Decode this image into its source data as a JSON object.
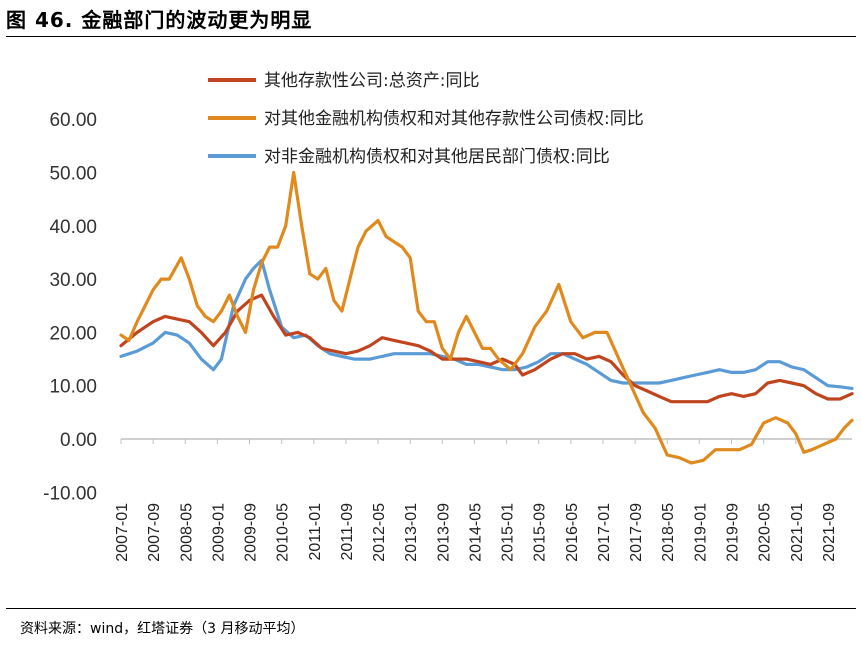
{
  "header": {
    "title": "图 46. 金融部门的波动更为明显"
  },
  "footer": {
    "source": "资料来源：wind，红塔证券（3 月移动平均）"
  },
  "chart_data": {
    "type": "line",
    "title": "",
    "xlabel": "",
    "ylabel": "",
    "ylim": [
      -10,
      60
    ],
    "yticks": [
      -10,
      0,
      10,
      20,
      30,
      40,
      50,
      60
    ],
    "ytick_labels": [
      "-10.00",
      "0.00",
      "10.00",
      "20.00",
      "30.00",
      "40.00",
      "50.00",
      "60.00"
    ],
    "x_start": "2007-01",
    "x_end": "2022-03",
    "x_tick_labels": [
      "2007-01",
      "2007-09",
      "2008-05",
      "2009-01",
      "2009-09",
      "2010-05",
      "2011-01",
      "2011-09",
      "2012-05",
      "2013-01",
      "2013-09",
      "2014-05",
      "2015-01",
      "2015-09",
      "2016-05",
      "2017-01",
      "2017-09",
      "2018-05",
      "2019-01",
      "2019-09",
      "2020-05",
      "2021-01",
      "2021-09"
    ],
    "legend_position": "top-center",
    "colors": {
      "series1": "#C0451F",
      "series2": "#E08A1E",
      "series3": "#5B9BD5",
      "axis": "#bfbfbf"
    },
    "series": [
      {
        "name": "其他存款性公司:总资产:同比",
        "color": "#C0451F",
        "points": [
          [
            "2007-01",
            17.5
          ],
          [
            "2007-05",
            20
          ],
          [
            "2007-09",
            22
          ],
          [
            "2007-12",
            23
          ],
          [
            "2008-03",
            22.5
          ],
          [
            "2008-06",
            22
          ],
          [
            "2008-09",
            20
          ],
          [
            "2008-12",
            17.5
          ],
          [
            "2009-03",
            20
          ],
          [
            "2009-06",
            24
          ],
          [
            "2009-09",
            26
          ],
          [
            "2009-12",
            27
          ],
          [
            "2010-03",
            23
          ],
          [
            "2010-06",
            19.5
          ],
          [
            "2010-09",
            20
          ],
          [
            "2010-12",
            19
          ],
          [
            "2011-03",
            17
          ],
          [
            "2011-06",
            16.5
          ],
          [
            "2011-09",
            16
          ],
          [
            "2011-12",
            16.5
          ],
          [
            "2012-03",
            17.5
          ],
          [
            "2012-06",
            19
          ],
          [
            "2012-09",
            18.5
          ],
          [
            "2012-12",
            18
          ],
          [
            "2013-03",
            17.5
          ],
          [
            "2013-06",
            16.5
          ],
          [
            "2013-09",
            15
          ],
          [
            "2013-12",
            15
          ],
          [
            "2014-03",
            15
          ],
          [
            "2014-06",
            14.5
          ],
          [
            "2014-09",
            14
          ],
          [
            "2014-12",
            15
          ],
          [
            "2015-03",
            14
          ],
          [
            "2015-05",
            12
          ],
          [
            "2015-08",
            13
          ],
          [
            "2015-12",
            15
          ],
          [
            "2016-03",
            16
          ],
          [
            "2016-06",
            16
          ],
          [
            "2016-09",
            15
          ],
          [
            "2016-12",
            15.5
          ],
          [
            "2017-03",
            14.5
          ],
          [
            "2017-06",
            12
          ],
          [
            "2017-09",
            10
          ],
          [
            "2017-12",
            9
          ],
          [
            "2018-03",
            8
          ],
          [
            "2018-06",
            7
          ],
          [
            "2018-09",
            7
          ],
          [
            "2018-12",
            7
          ],
          [
            "2019-03",
            7
          ],
          [
            "2019-06",
            8
          ],
          [
            "2019-09",
            8.5
          ],
          [
            "2019-12",
            8
          ],
          [
            "2020-03",
            8.5
          ],
          [
            "2020-06",
            10.5
          ],
          [
            "2020-09",
            11
          ],
          [
            "2020-12",
            10.5
          ],
          [
            "2021-03",
            10
          ],
          [
            "2021-06",
            8.5
          ],
          [
            "2021-09",
            7.5
          ],
          [
            "2021-12",
            7.5
          ],
          [
            "2022-03",
            8.5
          ]
        ]
      },
      {
        "name": "对其他金融机构债权和对其他存款性公司债权:同比",
        "color": "#E08A1E",
        "points": [
          [
            "2007-01",
            19.5
          ],
          [
            "2007-03",
            18.5
          ],
          [
            "2007-05",
            22
          ],
          [
            "2007-07",
            25
          ],
          [
            "2007-09",
            28
          ],
          [
            "2007-11",
            30
          ],
          [
            "2008-01",
            30
          ],
          [
            "2008-04",
            34
          ],
          [
            "2008-06",
            30
          ],
          [
            "2008-08",
            25
          ],
          [
            "2008-10",
            23
          ],
          [
            "2008-12",
            22
          ],
          [
            "2009-02",
            24
          ],
          [
            "2009-04",
            27
          ],
          [
            "2009-06",
            23
          ],
          [
            "2009-08",
            20
          ],
          [
            "2009-10",
            28
          ],
          [
            "2009-12",
            33
          ],
          [
            "2010-02",
            36
          ],
          [
            "2010-04",
            36
          ],
          [
            "2010-06",
            40
          ],
          [
            "2010-08",
            50
          ],
          [
            "2010-10",
            40
          ],
          [
            "2010-12",
            31
          ],
          [
            "2011-02",
            30
          ],
          [
            "2011-04",
            32
          ],
          [
            "2011-06",
            26
          ],
          [
            "2011-08",
            24
          ],
          [
            "2011-10",
            30
          ],
          [
            "2011-12",
            36
          ],
          [
            "2012-02",
            39
          ],
          [
            "2012-05",
            41
          ],
          [
            "2012-07",
            38
          ],
          [
            "2012-09",
            37
          ],
          [
            "2012-11",
            36
          ],
          [
            "2013-01",
            34
          ],
          [
            "2013-03",
            24
          ],
          [
            "2013-05",
            22
          ],
          [
            "2013-07",
            22
          ],
          [
            "2013-09",
            17
          ],
          [
            "2013-11",
            15
          ],
          [
            "2014-01",
            20
          ],
          [
            "2014-03",
            23
          ],
          [
            "2014-05",
            20
          ],
          [
            "2014-07",
            17
          ],
          [
            "2014-09",
            17
          ],
          [
            "2014-11",
            15
          ],
          [
            "2015-02",
            13
          ],
          [
            "2015-05",
            16
          ],
          [
            "2015-08",
            21
          ],
          [
            "2015-11",
            24
          ],
          [
            "2016-02",
            29
          ],
          [
            "2016-05",
            22
          ],
          [
            "2016-08",
            19
          ],
          [
            "2016-11",
            20
          ],
          [
            "2017-02",
            20
          ],
          [
            "2017-05",
            15
          ],
          [
            "2017-08",
            10
          ],
          [
            "2017-11",
            5
          ],
          [
            "2018-02",
            2
          ],
          [
            "2018-05",
            -3
          ],
          [
            "2018-08",
            -3.5
          ],
          [
            "2018-11",
            -4.5
          ],
          [
            "2019-02",
            -4
          ],
          [
            "2019-05",
            -2
          ],
          [
            "2019-08",
            -2
          ],
          [
            "2019-11",
            -2
          ],
          [
            "2020-02",
            -1
          ],
          [
            "2020-05",
            3
          ],
          [
            "2020-08",
            4
          ],
          [
            "2020-11",
            3
          ],
          [
            "2021-01",
            1
          ],
          [
            "2021-03",
            -2.5
          ],
          [
            "2021-05",
            -2
          ],
          [
            "2021-08",
            -1
          ],
          [
            "2021-11",
            0
          ],
          [
            "2022-01",
            2
          ],
          [
            "2022-03",
            3.5
          ]
        ]
      },
      {
        "name": "对非金融机构债权和对其他居民部门债权:同比",
        "color": "#5B9BD5",
        "points": [
          [
            "2007-01",
            15.5
          ],
          [
            "2007-05",
            16.5
          ],
          [
            "2007-09",
            18
          ],
          [
            "2007-12",
            20
          ],
          [
            "2008-03",
            19.5
          ],
          [
            "2008-06",
            18
          ],
          [
            "2008-09",
            15
          ],
          [
            "2008-12",
            13
          ],
          [
            "2009-02",
            15
          ],
          [
            "2009-05",
            25
          ],
          [
            "2009-08",
            30
          ],
          [
            "2009-10",
            32
          ],
          [
            "2009-12",
            33.5
          ],
          [
            "2010-02",
            28
          ],
          [
            "2010-05",
            21
          ],
          [
            "2010-08",
            19
          ],
          [
            "2010-11",
            19.5
          ],
          [
            "2011-02",
            17.5
          ],
          [
            "2011-05",
            16
          ],
          [
            "2011-08",
            15.5
          ],
          [
            "2011-11",
            15
          ],
          [
            "2012-03",
            15
          ],
          [
            "2012-06",
            15.5
          ],
          [
            "2012-09",
            16
          ],
          [
            "2012-12",
            16
          ],
          [
            "2013-03",
            16
          ],
          [
            "2013-06",
            16
          ],
          [
            "2013-09",
            15.5
          ],
          [
            "2013-12",
            15
          ],
          [
            "2014-03",
            14
          ],
          [
            "2014-06",
            14
          ],
          [
            "2014-09",
            13.5
          ],
          [
            "2014-12",
            13
          ],
          [
            "2015-03",
            13
          ],
          [
            "2015-06",
            13.5
          ],
          [
            "2015-09",
            14.5
          ],
          [
            "2015-12",
            16
          ],
          [
            "2016-03",
            16
          ],
          [
            "2016-06",
            15
          ],
          [
            "2016-09",
            14
          ],
          [
            "2016-12",
            12.5
          ],
          [
            "2017-03",
            11
          ],
          [
            "2017-06",
            10.5
          ],
          [
            "2017-09",
            10.5
          ],
          [
            "2017-12",
            10.5
          ],
          [
            "2018-03",
            10.5
          ],
          [
            "2018-06",
            11
          ],
          [
            "2018-09",
            11.5
          ],
          [
            "2018-12",
            12
          ],
          [
            "2019-03",
            12.5
          ],
          [
            "2019-06",
            13
          ],
          [
            "2019-09",
            12.5
          ],
          [
            "2019-12",
            12.5
          ],
          [
            "2020-03",
            13
          ],
          [
            "2020-06",
            14.5
          ],
          [
            "2020-09",
            14.5
          ],
          [
            "2020-12",
            13.5
          ],
          [
            "2021-03",
            13
          ],
          [
            "2021-06",
            11.5
          ],
          [
            "2021-09",
            10
          ],
          [
            "2021-12",
            9.8
          ],
          [
            "2022-03",
            9.5
          ]
        ]
      }
    ]
  }
}
